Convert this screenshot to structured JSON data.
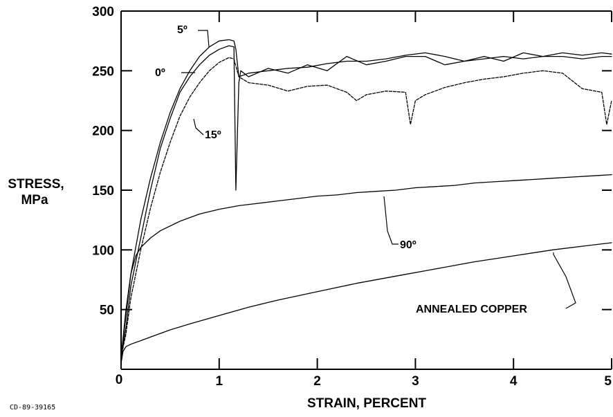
{
  "chart_data": {
    "type": "line",
    "title": "",
    "xlabel": "STRAIN, PERCENT",
    "ylabel_lines": [
      "STRESS,",
      "MPa"
    ],
    "xlim": [
      0,
      5
    ],
    "ylim": [
      0,
      300
    ],
    "x_ticks": [
      0,
      1,
      2,
      3,
      4,
      5
    ],
    "y_ticks": [
      50,
      100,
      150,
      200,
      250,
      300
    ],
    "x_tick_labels": [
      "0",
      "1",
      "2",
      "3",
      "4",
      "5"
    ],
    "y_tick_labels": [
      "50",
      "100",
      "150",
      "200",
      "250",
      "300"
    ],
    "origin_label": "0",
    "grid": false,
    "figure_code": "CD-89-39165",
    "series": [
      {
        "name": "0º",
        "label": "0º",
        "x": [
          0,
          0.05,
          0.1,
          0.2,
          0.3,
          0.4,
          0.5,
          0.6,
          0.7,
          0.8,
          0.9,
          1.0,
          1.1,
          1.15,
          1.17,
          1.2,
          1.3,
          1.5,
          1.7,
          1.9,
          2.1,
          2.3,
          2.5,
          2.7,
          2.9,
          3.1,
          3.3,
          3.5,
          3.7,
          3.9,
          4.1,
          4.3,
          4.5,
          4.7,
          4.9,
          5.0
        ],
        "y": [
          10,
          45,
          80,
          125,
          160,
          190,
          215,
          235,
          250,
          262,
          270,
          275,
          276,
          275,
          268,
          245,
          248,
          250,
          252,
          253,
          256,
          258,
          258,
          260,
          263,
          265,
          262,
          258,
          260,
          262,
          260,
          262,
          265,
          263,
          265,
          264
        ]
      },
      {
        "name": "5º",
        "label": "5º",
        "x": [
          0,
          0.05,
          0.1,
          0.2,
          0.3,
          0.4,
          0.5,
          0.6,
          0.7,
          0.8,
          0.9,
          1.0,
          1.1,
          1.15,
          1.17,
          1.2,
          1.22,
          1.3,
          1.5,
          1.7,
          1.9,
          2.1,
          2.3,
          2.5,
          2.7,
          2.9,
          3.1,
          3.3,
          3.5,
          3.7,
          3.9,
          4.1,
          4.3,
          4.5,
          4.7,
          4.9,
          5.0
        ],
        "y": [
          10,
          35,
          70,
          110,
          150,
          185,
          210,
          232,
          245,
          255,
          263,
          268,
          271,
          270,
          150,
          240,
          250,
          245,
          252,
          248,
          255,
          250,
          262,
          255,
          258,
          262,
          262,
          255,
          258,
          262,
          258,
          265,
          262,
          262,
          260,
          262,
          262
        ]
      },
      {
        "name": "15º",
        "label": "15º",
        "x": [
          0,
          0.05,
          0.1,
          0.2,
          0.3,
          0.4,
          0.5,
          0.6,
          0.7,
          0.8,
          0.9,
          1.0,
          1.1,
          1.15,
          1.2,
          1.3,
          1.5,
          1.7,
          1.9,
          2.1,
          2.3,
          2.4,
          2.5,
          2.7,
          2.9,
          2.95,
          3.0,
          3.1,
          3.3,
          3.5,
          3.7,
          3.9,
          4.1,
          4.3,
          4.5,
          4.7,
          4.9,
          4.95,
          5.0
        ],
        "y": [
          10,
          30,
          60,
          100,
          135,
          165,
          190,
          212,
          228,
          240,
          250,
          257,
          261,
          260,
          245,
          240,
          238,
          233,
          237,
          238,
          232,
          225,
          230,
          233,
          232,
          205,
          225,
          230,
          236,
          240,
          243,
          245,
          248,
          250,
          248,
          235,
          232,
          205,
          225
        ]
      },
      {
        "name": "90º",
        "label": "90º",
        "x": [
          0,
          0.05,
          0.1,
          0.15,
          0.2,
          0.3,
          0.4,
          0.6,
          0.8,
          1.0,
          1.2,
          1.4,
          1.6,
          1.8,
          2.0,
          2.2,
          2.4,
          2.6,
          2.8,
          3.0,
          3.2,
          3.4,
          3.6,
          3.8,
          4.0,
          4.2,
          4.4,
          4.6,
          4.8,
          5.0
        ],
        "y": [
          10,
          50,
          80,
          95,
          102,
          110,
          116,
          124,
          130,
          134,
          137,
          139,
          141,
          143,
          145,
          146,
          148,
          149,
          150,
          152,
          153,
          154,
          156,
          157,
          158,
          159,
          160,
          161,
          162,
          163
        ]
      },
      {
        "name": "ANNEALED COPPER",
        "label": "ANNEALED COPPER",
        "x": [
          0,
          0.02,
          0.05,
          0.1,
          0.2,
          0.3,
          0.5,
          0.7,
          1.0,
          1.3,
          1.6,
          2.0,
          2.4,
          2.8,
          3.2,
          3.6,
          4.0,
          4.4,
          4.8,
          5.0
        ],
        "y": [
          5,
          15,
          19,
          21,
          24,
          27,
          33,
          38,
          45,
          52,
          58,
          65,
          72,
          78,
          84,
          90,
          95,
          100,
          104,
          106
        ]
      }
    ]
  }
}
